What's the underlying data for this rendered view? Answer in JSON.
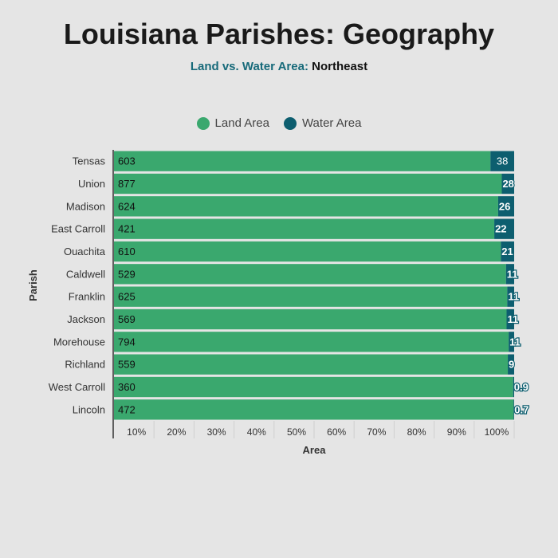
{
  "header": {
    "title": "Louisiana Parishes: Geography",
    "subtitle_a": "Land vs. Water Area:",
    "subtitle_b": "Northeast"
  },
  "legend": {
    "land_label": "Land Area",
    "water_label": "Water Area"
  },
  "colors": {
    "land": "#3aa86e",
    "water": "#0d5e6f"
  },
  "chart_data": {
    "type": "bar",
    "orientation": "horizontal",
    "stacked_percent": true,
    "xlabel": "Area",
    "ylabel": "Parish",
    "categories": [
      "Tensas",
      "Union",
      "Madison",
      "East Carroll",
      "Ouachita",
      "Caldwell",
      "Franklin",
      "Jackson",
      "Morehouse",
      "Richland",
      "West Carroll",
      "Lincoln"
    ],
    "series": [
      {
        "name": "Land Area",
        "values": [
          603,
          877,
          624,
          421,
          610,
          529,
          625,
          569,
          794,
          559,
          360,
          472
        ]
      },
      {
        "name": "Water Area",
        "values": [
          38,
          28,
          26,
          22,
          21,
          11,
          11,
          11,
          11,
          9,
          0.9,
          0.7
        ]
      }
    ],
    "x_ticks": [
      "10%",
      "20%",
      "30%",
      "40%",
      "50%",
      "60%",
      "70%",
      "80%",
      "90%",
      "100%"
    ],
    "xlim": [
      0,
      100
    ],
    "grid": true,
    "legend_position": "top"
  }
}
